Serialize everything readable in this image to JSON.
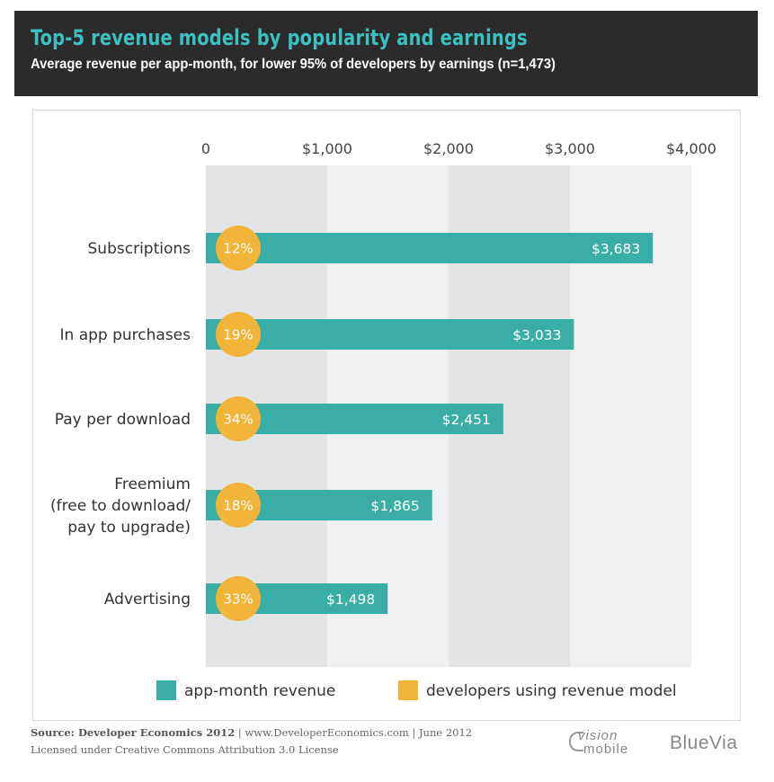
{
  "header": {
    "title": "Top-5 revenue models by popularity and earnings",
    "subtitle": "Average revenue per app-month, for lower 95% of developers by earnings (n=1,473)"
  },
  "chart_data": {
    "type": "bar",
    "orientation": "horizontal",
    "title": "Top-5 revenue models by popularity and earnings",
    "subtitle": "Average revenue per app-month, for lower 95% of developers by earnings (n=1,473)",
    "xlim": [
      0,
      4000
    ],
    "ticks": [
      0,
      1000,
      2000,
      3000,
      4000
    ],
    "tick_labels": [
      "0",
      "$1,000",
      "$2,000",
      "$3,000",
      "$4,000"
    ],
    "categories": [
      [
        "Subscriptions"
      ],
      [
        "In app purchases"
      ],
      [
        "Pay per download"
      ],
      [
        "Freemium",
        "(free to download/",
        "pay to upgrade)"
      ],
      [
        "Advertising"
      ]
    ],
    "series": [
      {
        "name": "app-month revenue",
        "values": [
          3683,
          3033,
          2451,
          1865,
          1498
        ],
        "labels": [
          "$3,683",
          "$3,033",
          "$2,451",
          "$1,865",
          "$1,498"
        ]
      },
      {
        "name": "developers using revenue model",
        "values": [
          12,
          19,
          34,
          18,
          33
        ],
        "labels": [
          "12%",
          "19%",
          "34%",
          "18%",
          "33%"
        ]
      }
    ],
    "legend": [
      "app-month revenue",
      "developers using revenue model"
    ],
    "legend_position": "bottom",
    "colors": {
      "bar": "#3aaea6",
      "circle": "#f2b53a",
      "band_dark": "#e3e4e5",
      "band_light": "#eff0f1",
      "text": "#333333"
    }
  },
  "footer": {
    "source_label": "Source: Developer Economics 2012",
    "source_rest": " | www.DeveloperEconomics.com | June 2012",
    "license": "Licensed under Creative Commons Attribution 3.0 License"
  },
  "logos": {
    "visionmobile_line1": "vision",
    "visionmobile_line2": "mobile",
    "bluevia": "BlueVia"
  }
}
